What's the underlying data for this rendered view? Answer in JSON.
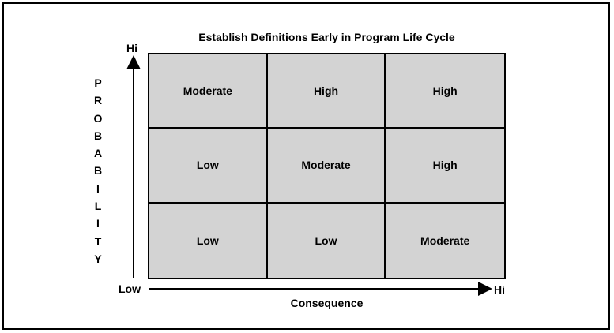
{
  "diagram": {
    "title": "Establish Definitions Early in Program Life Cycle",
    "y_axis": {
      "label": "PROBABILITY",
      "hi": "Hi",
      "low": "Low"
    },
    "x_axis": {
      "label": "Consequence",
      "hi": "Hi"
    },
    "matrix": [
      [
        "Moderate",
        "High",
        "High"
      ],
      [
        "Low",
        "Moderate",
        "High"
      ],
      [
        "Low",
        "Low",
        "Moderate"
      ]
    ],
    "colors": {
      "cell_fill": "#d3d3d3",
      "lines": "#000000",
      "background": "#ffffff"
    }
  }
}
